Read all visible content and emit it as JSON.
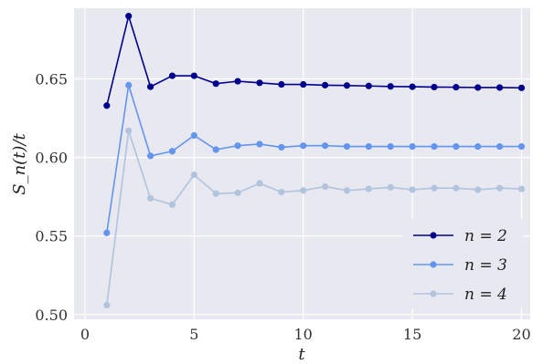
{
  "chart_data": {
    "type": "line",
    "xlabel": "t",
    "ylabel": "S_n(t)/t",
    "xlim": [
      -0.5,
      20.4
    ],
    "ylim": [
      0.497,
      0.695
    ],
    "xticks": [
      0,
      5,
      10,
      15,
      20
    ],
    "xtick_labels": [
      "0",
      "5",
      "10",
      "15",
      "20"
    ],
    "yticks": [
      0.5,
      0.55,
      0.6,
      0.65
    ],
    "ytick_labels": [
      "0.50",
      "0.55",
      "0.60",
      "0.65"
    ],
    "grid": true,
    "legend_position": "lower-right",
    "background": "#e8e8f1",
    "x": [
      1,
      2,
      3,
      4,
      5,
      6,
      7,
      8,
      9,
      10,
      11,
      12,
      13,
      14,
      15,
      16,
      17,
      18,
      19,
      20
    ],
    "series": [
      {
        "name": "n = 2",
        "color": "#00008b",
        "values": [
          0.633,
          0.69,
          0.645,
          0.652,
          0.652,
          0.647,
          0.6485,
          0.6475,
          0.6465,
          0.6465,
          0.646,
          0.6458,
          0.6455,
          0.6452,
          0.645,
          0.6448,
          0.6447,
          0.6445,
          0.6445,
          0.6443
        ]
      },
      {
        "name": "n = 3",
        "color": "#6495ed",
        "values": [
          0.552,
          0.646,
          0.601,
          0.604,
          0.614,
          0.605,
          0.6075,
          0.6085,
          0.6065,
          0.6075,
          0.6075,
          0.607,
          0.607,
          0.607,
          0.607,
          0.607,
          0.607,
          0.607,
          0.607,
          0.607
        ]
      },
      {
        "name": "n = 4",
        "color": "#b0c4de",
        "values": [
          0.506,
          0.617,
          0.574,
          0.57,
          0.589,
          0.577,
          0.5775,
          0.5835,
          0.578,
          0.579,
          0.5815,
          0.579,
          0.58,
          0.581,
          0.5795,
          0.5805,
          0.5805,
          0.5795,
          0.5805,
          0.58
        ]
      }
    ]
  }
}
